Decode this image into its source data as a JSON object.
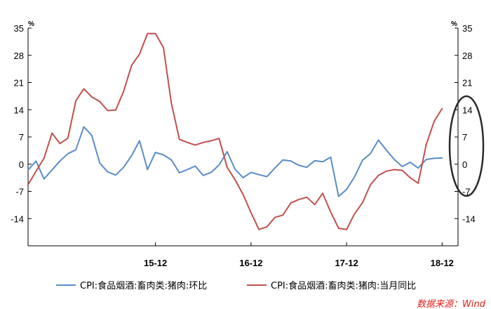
{
  "chart_data": {
    "type": "line",
    "xlabel": "",
    "ylabel": "",
    "y_unit_left": "%",
    "y_unit_right": "%",
    "ylim": [
      -21,
      35
    ],
    "yticks": [
      35,
      28,
      21,
      14,
      7,
      0,
      -7,
      -14
    ],
    "x_start": "2014-08",
    "x_end": "2019-02",
    "xticks": [
      {
        "label": "15-12",
        "month": "2015-12"
      },
      {
        "label": "16-12",
        "month": "2016-12"
      },
      {
        "label": "17-12",
        "month": "2017-12"
      },
      {
        "label": "18-12",
        "month": "2018-12"
      }
    ],
    "grid": false,
    "legend": "bottom",
    "series": [
      {
        "name": "CPI:食品烟酒:畜肉类:猪肉:环比",
        "color": "#5b8cc8",
        "axis": "left",
        "values": [
          -1.5,
          0.8,
          -3.8,
          -1.5,
          0.8,
          2.7,
          3.7,
          9.6,
          7.4,
          0.3,
          -2.0,
          -2.8,
          -0.8,
          2.2,
          6.0,
          -1.4,
          3.0,
          2.4,
          1.1,
          -2.2,
          -1.4,
          -0.5,
          -2.9,
          -2.1,
          -0.2,
          3.2,
          -1.3,
          -3.5,
          -2.1,
          -2.7,
          -3.2,
          -1.0,
          1.1,
          0.8,
          -0.3,
          -0.8,
          0.9,
          0.6,
          1.8,
          -8.3,
          -6.5,
          -3.3,
          1.0,
          2.7,
          6.2,
          3.6,
          1.2,
          -0.6,
          0.5,
          -1.0,
          1.2,
          1.5,
          1.6
        ]
      },
      {
        "name": "CPI:食品烟酒:畜肉类:猪肉:当月同比",
        "color": "#c0504d",
        "axis": "right",
        "values": [
          -5.3,
          -1.8,
          1.5,
          8.0,
          5.3,
          6.7,
          16.3,
          19.4,
          17.3,
          16.1,
          13.8,
          13.9,
          18.7,
          25.4,
          28.3,
          33.6,
          33.6,
          30.0,
          15.7,
          6.4,
          5.6,
          4.9,
          5.6,
          6.0,
          6.6,
          -0.8,
          -4.0,
          -7.8,
          -12.5,
          -16.8,
          -16.1,
          -13.7,
          -13.1,
          -10.0,
          -9.1,
          -8.5,
          -10.4,
          -7.5,
          -12.3,
          -16.5,
          -16.8,
          -12.8,
          -9.9,
          -5.3,
          -2.9,
          -1.8,
          -1.4,
          -1.6,
          -3.5,
          -4.9,
          5.0,
          11.0,
          14.3
        ]
      }
    ],
    "annotation": "ellipse highlighting the most recent data points at the right edge"
  },
  "legend": {
    "items": [
      {
        "label": "CPI:食品烟酒:畜肉类:猪肉:环比",
        "color": "#5b8cc8"
      },
      {
        "label": "CPI:食品烟酒:畜肉类:猪肉:当月同比",
        "color": "#c0504d"
      }
    ]
  },
  "source": "数据来源：Wind"
}
